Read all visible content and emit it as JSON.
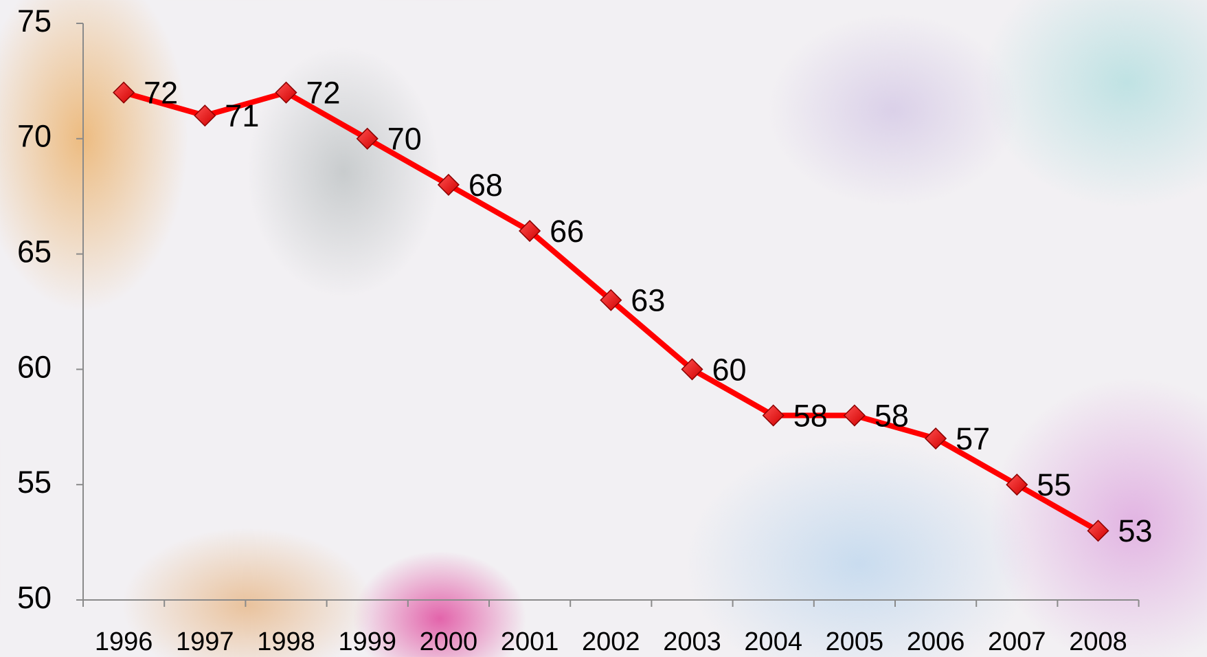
{
  "chart_data": {
    "type": "line",
    "categories": [
      "1996",
      "1997",
      "1998",
      "1999",
      "2000",
      "2001",
      "2002",
      "2003",
      "2004",
      "2005",
      "2006",
      "2007",
      "2008"
    ],
    "values": [
      72,
      71,
      72,
      70,
      68,
      66,
      63,
      60,
      58,
      58,
      57,
      55,
      53
    ],
    "color": "#ff0000",
    "ylim": [
      50,
      75
    ],
    "yticks": [
      50,
      55,
      60,
      65,
      70,
      75
    ]
  }
}
